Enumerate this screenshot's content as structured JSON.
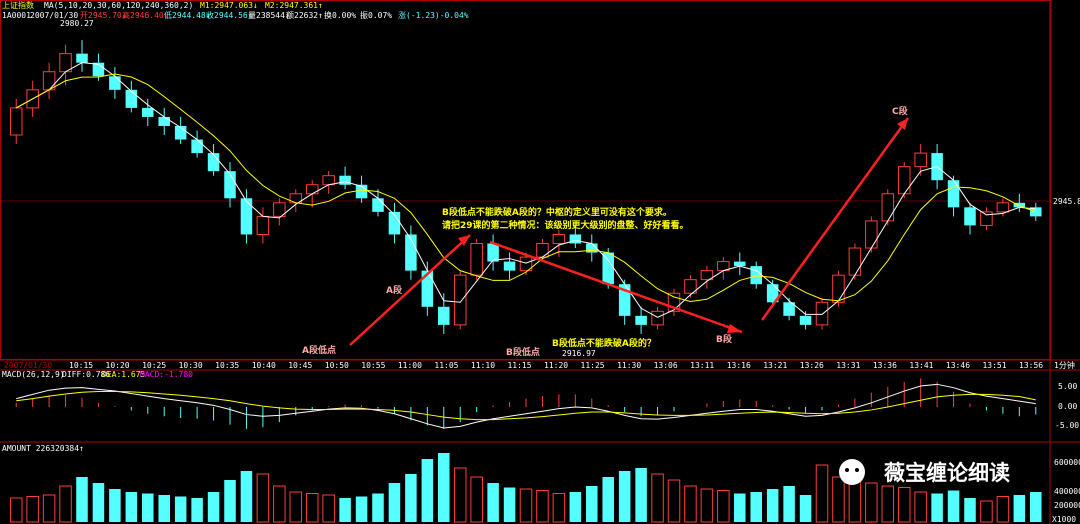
{
  "header": {
    "symbol": "上证指数",
    "ma_label": "MA(5,10,20,30,60,120,240,360,2)",
    "m1": "M1:2947.063↓",
    "m2": "M2:2947.361↑",
    "code": "1A0001",
    "date": "2007/01/30",
    "open": "开2945.70↓",
    "high": "高2946.40↓",
    "low": "低2944.48↓",
    "close": "收2944.56↓",
    "volume": "量238544↓",
    "amount": "额22632↑",
    "turnover": "换0.00%",
    "amplitude": "振0.07%",
    "change": "涨(-1.23)-0.04%"
  },
  "price_axis": {
    "right_value": "2945.8",
    "peak_label": "2980.27",
    "low_label": "2916.97"
  },
  "time_axis": {
    "date": "2007/01/30",
    "ticks": [
      "10:15",
      "10:20",
      "10:25",
      "10:30",
      "10:35",
      "10:40",
      "10:45",
      "10:50",
      "10:55",
      "11:00",
      "11:05",
      "11:10",
      "11:15",
      "11:20",
      "11:25",
      "11:30",
      "13:06",
      "13:11",
      "13:16",
      "13:21",
      "13:26",
      "13:31",
      "13:36",
      "13:41",
      "13:46",
      "13:51",
      "13:56"
    ],
    "unit": "1分钟"
  },
  "macd": {
    "title": "MACD(26,12,9)",
    "diff": "DIFF:0.786",
    "dea": "DEA:1.675",
    "macd": "MACD:-1.780",
    "axis": [
      "5.00",
      "0.00",
      "-5.00"
    ]
  },
  "amount_panel": {
    "title": "AMOUNT 226320384↑",
    "axis": [
      "600000",
      "400000",
      "200000"
    ],
    "bottom_value": "X1000"
  },
  "annotations": {
    "line1": "B段低点不能跌破A段的？中枢的定义里可没有这个要求。",
    "line2": "请把29课的第二种情况：该级别更大级别的盘整、好好看看。",
    "a_low": "A段低点",
    "a_seg": "A段",
    "b_low": "B段低点",
    "b_note": "B段低点不能跌破A段的？",
    "b_seg": "B段",
    "c_seg": "C段"
  },
  "watermark": "薇宝缠论细读",
  "colors": {
    "up": "#ff3c3c",
    "down": "#54ffff",
    "ma1": "#ffffff",
    "ma2": "#ffff00",
    "arrow": "#ff2020",
    "note": "#ffff00",
    "axis": "#b00000"
  },
  "chart_data": {
    "type": "candlestick",
    "candles": [
      [
        2960,
        2968,
        2958,
        2966
      ],
      [
        2966,
        2972,
        2964,
        2970
      ],
      [
        2970,
        2976,
        2968,
        2974
      ],
      [
        2974,
        2980,
        2971,
        2978
      ],
      [
        2978,
        2981,
        2974,
        2976
      ],
      [
        2976,
        2978,
        2972,
        2973
      ],
      [
        2973,
        2975,
        2968,
        2970
      ],
      [
        2970,
        2972,
        2965,
        2966
      ],
      [
        2966,
        2968,
        2962,
        2964
      ],
      [
        2964,
        2966,
        2960,
        2962
      ],
      [
        2962,
        2964,
        2958,
        2959
      ],
      [
        2959,
        2961,
        2955,
        2956
      ],
      [
        2956,
        2958,
        2951,
        2952
      ],
      [
        2952,
        2954,
        2944,
        2946
      ],
      [
        2946,
        2948,
        2936,
        2938
      ],
      [
        2938,
        2944,
        2936,
        2942
      ],
      [
        2942,
        2946,
        2940,
        2945
      ],
      [
        2945,
        2948,
        2943,
        2947
      ],
      [
        2947,
        2950,
        2944,
        2949
      ],
      [
        2949,
        2952,
        2947,
        2951
      ],
      [
        2951,
        2953,
        2948,
        2949
      ],
      [
        2949,
        2951,
        2945,
        2946
      ],
      [
        2946,
        2948,
        2942,
        2943
      ],
      [
        2943,
        2945,
        2936,
        2938
      ],
      [
        2938,
        2940,
        2928,
        2930
      ],
      [
        2930,
        2932,
        2920,
        2922
      ],
      [
        2922,
        2925,
        2916,
        2918
      ],
      [
        2918,
        2930,
        2917,
        2929
      ],
      [
        2929,
        2937,
        2928,
        2936
      ],
      [
        2936,
        2938,
        2930,
        2932
      ],
      [
        2932,
        2934,
        2928,
        2930
      ],
      [
        2930,
        2934,
        2929,
        2933
      ],
      [
        2933,
        2937,
        2932,
        2936
      ],
      [
        2936,
        2939,
        2933,
        2938
      ],
      [
        2938,
        2940,
        2935,
        2936
      ],
      [
        2936,
        2938,
        2932,
        2934
      ],
      [
        2934,
        2935,
        2926,
        2927
      ],
      [
        2927,
        2928,
        2918,
        2920
      ],
      [
        2920,
        2922,
        2916,
        2918
      ],
      [
        2918,
        2922,
        2917,
        2921
      ],
      [
        2921,
        2926,
        2920,
        2925
      ],
      [
        2925,
        2929,
        2924,
        2928
      ],
      [
        2928,
        2931,
        2926,
        2930
      ],
      [
        2930,
        2933,
        2928,
        2932
      ],
      [
        2932,
        2934,
        2929,
        2931
      ],
      [
        2931,
        2932,
        2926,
        2927
      ],
      [
        2927,
        2928,
        2922,
        2923
      ],
      [
        2923,
        2924,
        2919,
        2920
      ],
      [
        2920,
        2921,
        2917,
        2918
      ],
      [
        2918,
        2924,
        2917,
        2923
      ],
      [
        2923,
        2930,
        2922,
        2929
      ],
      [
        2929,
        2936,
        2928,
        2935
      ],
      [
        2935,
        2942,
        2934,
        2941
      ],
      [
        2941,
        2948,
        2940,
        2947
      ],
      [
        2947,
        2954,
        2946,
        2953
      ],
      [
        2953,
        2958,
        2951,
        2956
      ],
      [
        2956,
        2958,
        2948,
        2950
      ],
      [
        2950,
        2951,
        2942,
        2944
      ],
      [
        2944,
        2945,
        2938,
        2940
      ],
      [
        2940,
        2944,
        2939,
        2943
      ],
      [
        2943,
        2946,
        2942,
        2945
      ],
      [
        2945,
        2947,
        2943,
        2944
      ],
      [
        2944,
        2945,
        2941,
        2942
      ]
    ],
    "volume": [
      80,
      85,
      90,
      120,
      150,
      130,
      110,
      100,
      95,
      90,
      85,
      80,
      100,
      140,
      170,
      160,
      120,
      100,
      95,
      90,
      80,
      85,
      95,
      130,
      160,
      210,
      230,
      180,
      150,
      130,
      115,
      110,
      105,
      95,
      100,
      120,
      150,
      170,
      180,
      160,
      140,
      120,
      110,
      105,
      95,
      100,
      110,
      120,
      90,
      190,
      150,
      140,
      130,
      120,
      115,
      100,
      95,
      105,
      80,
      70,
      85,
      90,
      100
    ],
    "macd_diff": [
      2,
      3,
      4,
      4.5,
      4.6,
      4.2,
      3.8,
      3.2,
      2.6,
      2.0,
      1.5,
      1.0,
      0.4,
      -0.6,
      -1.8,
      -2.2,
      -2.0,
      -1.5,
      -1.0,
      -0.5,
      -0.2,
      -0.3,
      -0.8,
      -1.6,
      -2.8,
      -4.0,
      -5.0,
      -4.6,
      -3.6,
      -2.8,
      -2.2,
      -1.6,
      -1.0,
      -0.4,
      0,
      -0.2,
      -1.0,
      -2.0,
      -2.8,
      -2.9,
      -2.5,
      -2.0,
      -1.5,
      -1.0,
      -0.6,
      -0.6,
      -1.0,
      -1.6,
      -2.2,
      -2.0,
      -1.2,
      -0.2,
      1.0,
      2.4,
      3.8,
      5.0,
      5.4,
      4.6,
      3.4,
      2.6,
      2.0,
      1.4,
      0.8
    ],
    "macd_dea": [
      1.5,
      2,
      2.6,
      3.1,
      3.5,
      3.7,
      3.7,
      3.6,
      3.4,
      3.1,
      2.8,
      2.4,
      2.0,
      1.5,
      0.8,
      0.2,
      -0.2,
      -0.5,
      -0.6,
      -0.6,
      -0.5,
      -0.5,
      -0.6,
      -0.8,
      -1.2,
      -1.8,
      -2.4,
      -2.8,
      -3.0,
      -3.0,
      -2.8,
      -2.6,
      -2.3,
      -1.9,
      -1.5,
      -1.2,
      -1.2,
      -1.4,
      -1.7,
      -1.9,
      -2.0,
      -2.0,
      -1.9,
      -1.7,
      -1.5,
      -1.3,
      -1.2,
      -1.3,
      -1.5,
      -1.6,
      -1.5,
      -1.2,
      -0.7,
      0,
      0.8,
      1.6,
      2.4,
      2.8,
      3.0,
      3.0,
      2.8,
      2.5,
      1.7
    ]
  }
}
